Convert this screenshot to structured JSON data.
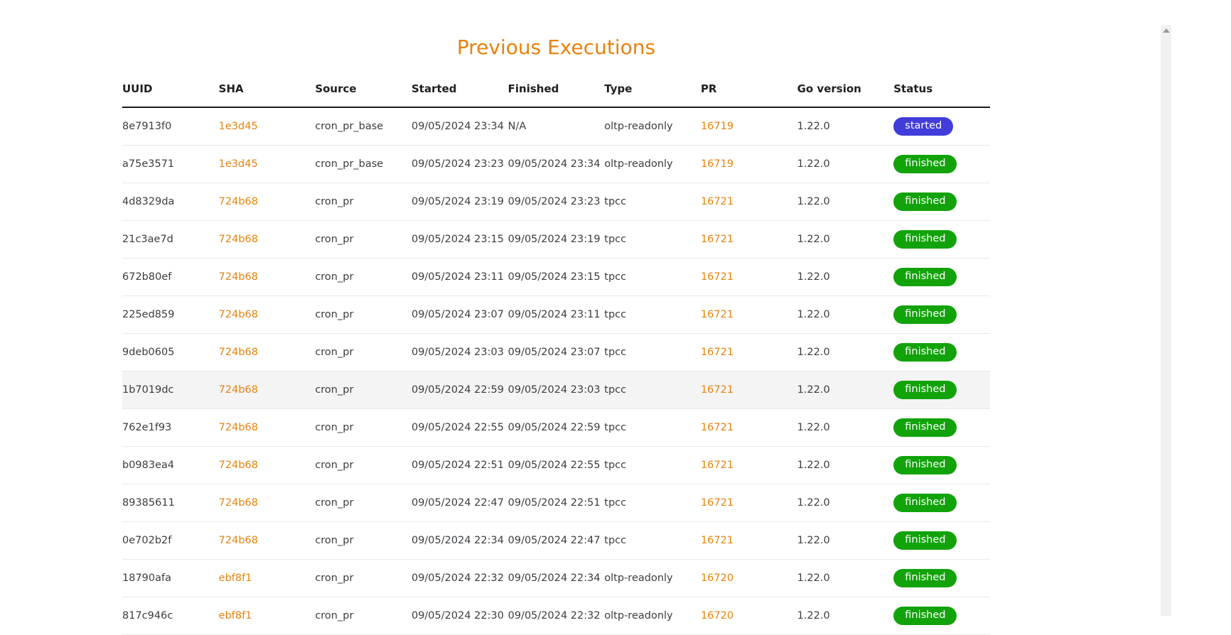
{
  "page": {
    "title": "Previous Executions"
  },
  "colors": {
    "title": "#e8820d",
    "link": "#e8820d",
    "badge_started_bg": "#413cda",
    "badge_finished_bg": "#12a30b",
    "badge_text": "#ffffff",
    "highlighted_row_bg": "#f4f4f4",
    "header_underline": "#1a1a1a"
  },
  "table": {
    "columns": [
      "UUID",
      "SHA",
      "Source",
      "Started",
      "Finished",
      "Type",
      "PR",
      "Go version",
      "Status"
    ],
    "rows": [
      {
        "uuid": "8e7913f0",
        "sha": "1e3d45",
        "source": "cron_pr_base",
        "started": "09/05/2024 23:34",
        "finished": "N/A",
        "type": "oltp-readonly",
        "pr": "16719",
        "go_version": "1.22.0",
        "status": "started",
        "highlighted": false
      },
      {
        "uuid": "a75e3571",
        "sha": "1e3d45",
        "source": "cron_pr_base",
        "started": "09/05/2024 23:23",
        "finished": "09/05/2024 23:34",
        "type": "oltp-readonly",
        "pr": "16719",
        "go_version": "1.22.0",
        "status": "finished",
        "highlighted": false
      },
      {
        "uuid": "4d8329da",
        "sha": "724b68",
        "source": "cron_pr",
        "started": "09/05/2024 23:19",
        "finished": "09/05/2024 23:23",
        "type": "tpcc",
        "pr": "16721",
        "go_version": "1.22.0",
        "status": "finished",
        "highlighted": false
      },
      {
        "uuid": "21c3ae7d",
        "sha": "724b68",
        "source": "cron_pr",
        "started": "09/05/2024 23:15",
        "finished": "09/05/2024 23:19",
        "type": "tpcc",
        "pr": "16721",
        "go_version": "1.22.0",
        "status": "finished",
        "highlighted": false
      },
      {
        "uuid": "672b80ef",
        "sha": "724b68",
        "source": "cron_pr",
        "started": "09/05/2024 23:11",
        "finished": "09/05/2024 23:15",
        "type": "tpcc",
        "pr": "16721",
        "go_version": "1.22.0",
        "status": "finished",
        "highlighted": false
      },
      {
        "uuid": "225ed859",
        "sha": "724b68",
        "source": "cron_pr",
        "started": "09/05/2024 23:07",
        "finished": "09/05/2024 23:11",
        "type": "tpcc",
        "pr": "16721",
        "go_version": "1.22.0",
        "status": "finished",
        "highlighted": false
      },
      {
        "uuid": "9deb0605",
        "sha": "724b68",
        "source": "cron_pr",
        "started": "09/05/2024 23:03",
        "finished": "09/05/2024 23:07",
        "type": "tpcc",
        "pr": "16721",
        "go_version": "1.22.0",
        "status": "finished",
        "highlighted": false
      },
      {
        "uuid": "1b7019dc",
        "sha": "724b68",
        "source": "cron_pr",
        "started": "09/05/2024 22:59",
        "finished": "09/05/2024 23:03",
        "type": "tpcc",
        "pr": "16721",
        "go_version": "1.22.0",
        "status": "finished",
        "highlighted": true
      },
      {
        "uuid": "762e1f93",
        "sha": "724b68",
        "source": "cron_pr",
        "started": "09/05/2024 22:55",
        "finished": "09/05/2024 22:59",
        "type": "tpcc",
        "pr": "16721",
        "go_version": "1.22.0",
        "status": "finished",
        "highlighted": false
      },
      {
        "uuid": "b0983ea4",
        "sha": "724b68",
        "source": "cron_pr",
        "started": "09/05/2024 22:51",
        "finished": "09/05/2024 22:55",
        "type": "tpcc",
        "pr": "16721",
        "go_version": "1.22.0",
        "status": "finished",
        "highlighted": false
      },
      {
        "uuid": "89385611",
        "sha": "724b68",
        "source": "cron_pr",
        "started": "09/05/2024 22:47",
        "finished": "09/05/2024 22:51",
        "type": "tpcc",
        "pr": "16721",
        "go_version": "1.22.0",
        "status": "finished",
        "highlighted": false
      },
      {
        "uuid": "0e702b2f",
        "sha": "724b68",
        "source": "cron_pr",
        "started": "09/05/2024 22:34",
        "finished": "09/05/2024 22:47",
        "type": "tpcc",
        "pr": "16721",
        "go_version": "1.22.0",
        "status": "finished",
        "highlighted": false
      },
      {
        "uuid": "18790afa",
        "sha": "ebf8f1",
        "source": "cron_pr",
        "started": "09/05/2024 22:32",
        "finished": "09/05/2024 22:34",
        "type": "oltp-readonly",
        "pr": "16720",
        "go_version": "1.22.0",
        "status": "finished",
        "highlighted": false
      },
      {
        "uuid": "817c946c",
        "sha": "ebf8f1",
        "source": "cron_pr",
        "started": "09/05/2024 22:30",
        "finished": "09/05/2024 22:32",
        "type": "oltp-readonly",
        "pr": "16720",
        "go_version": "1.22.0",
        "status": "finished",
        "highlighted": false
      }
    ]
  },
  "scrollbar": {
    "up_icon": "triangle-up"
  }
}
